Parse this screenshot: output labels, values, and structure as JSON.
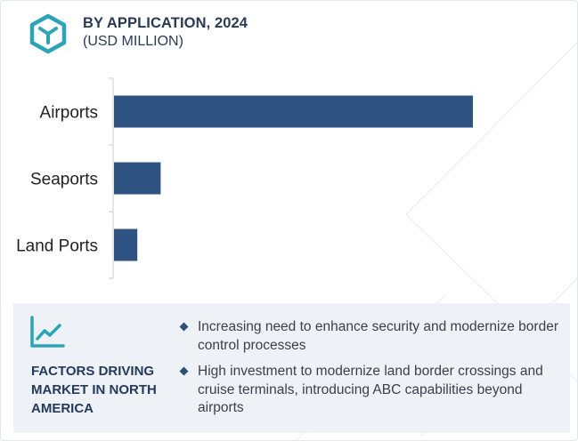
{
  "header": {
    "title": "BY APPLICATION, 2024",
    "subtitle": "(USD MILLION)",
    "logo_icon": "hexagon-y-logo-icon",
    "accent_color": "#2aa5b8"
  },
  "chart_data": {
    "type": "bar",
    "orientation": "horizontal",
    "categories": [
      "Airports",
      "Seaports",
      "Land Ports"
    ],
    "values": [
      100,
      13,
      6.5
    ],
    "bar_color": "#2e5382",
    "grid": false
  },
  "factors": {
    "icon": "trend-line-icon",
    "heading": "FACTORS DRIVING MARKET IN NORTH AMERICA",
    "bullets": [
      "Increasing need to enhance security and modernize border control processes",
      "High investment to modernize land border crossings and cruise terminals, introducing ABC capabilities beyond airports"
    ]
  }
}
